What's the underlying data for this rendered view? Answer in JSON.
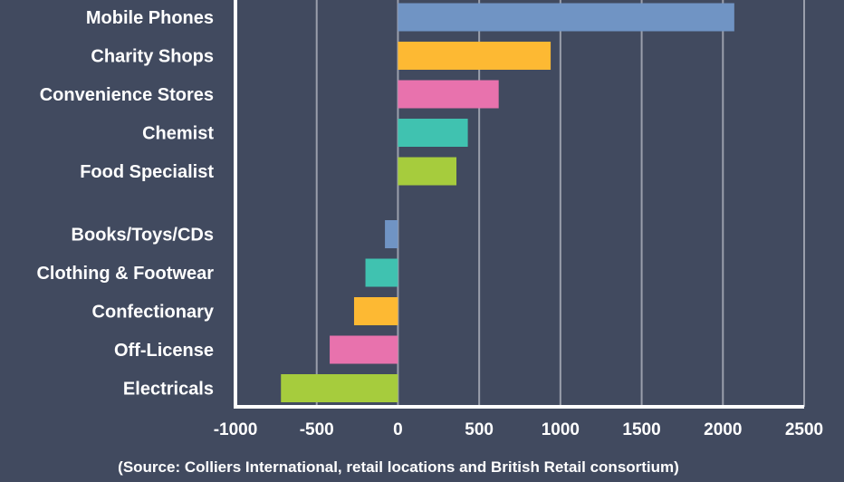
{
  "chart_data": {
    "type": "bar",
    "orientation": "horizontal",
    "title": "",
    "xlabel": "",
    "ylabel": "",
    "xlim": [
      -1000,
      2500
    ],
    "xticks": [
      -1000,
      -500,
      0,
      500,
      1000,
      1500,
      2000,
      2500
    ],
    "grid": true,
    "categories": [
      "Mobile Phones",
      "Charity Shops",
      "Convenience Stores",
      "Chemist",
      "Food Specialist",
      "Books/Toys/CDs",
      "Clothing & Footwear",
      "Confectionary",
      "Off-License",
      "Electricals"
    ],
    "values": [
      2070,
      940,
      620,
      430,
      360,
      -80,
      -200,
      -270,
      -420,
      -720
    ],
    "colors": [
      "#7094c4",
      "#fdb933",
      "#e872ad",
      "#40c2b0",
      "#a6cc3d",
      "#7094c4",
      "#40c2b0",
      "#fdb933",
      "#e872ad",
      "#a6cc3d"
    ],
    "source": "(Source: Colliers International, retail locations and British Retail consortium)"
  }
}
